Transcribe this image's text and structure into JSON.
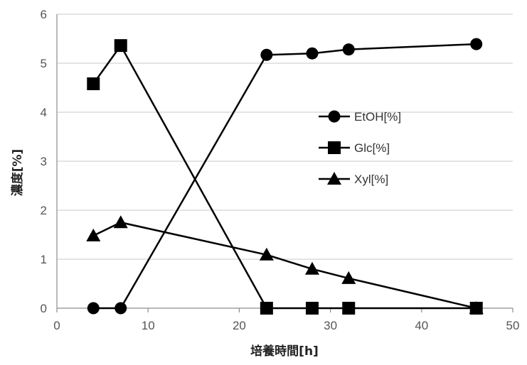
{
  "chart_data": {
    "type": "line",
    "xlabel": "培養時間[h]",
    "ylabel": "濃度[%]",
    "xlim": [
      0,
      50
    ],
    "ylim": [
      0,
      6
    ],
    "x_ticks": [
      "0",
      "10",
      "20",
      "30",
      "40",
      "50"
    ],
    "y_ticks": [
      "0",
      "1",
      "2",
      "3",
      "4",
      "5",
      "6"
    ],
    "grid": "horizontal",
    "legend_position": "center-right",
    "series": [
      {
        "name": "EtOH[%]",
        "marker": "circle",
        "color": "#000000",
        "x": [
          4,
          7,
          23,
          28,
          32,
          46
        ],
        "y": [
          0,
          0,
          5.17,
          5.2,
          5.28,
          5.39
        ]
      },
      {
        "name": "Glc[%]",
        "marker": "square",
        "color": "#000000",
        "x": [
          4,
          7,
          23,
          28,
          32,
          46
        ],
        "y": [
          4.58,
          5.36,
          0,
          0,
          0,
          0
        ]
      },
      {
        "name": "Xyl[%]",
        "marker": "triangle",
        "color": "#000000",
        "x": [
          4,
          7,
          23,
          28,
          32,
          46
        ],
        "y": [
          1.48,
          1.75,
          1.09,
          0.8,
          0.61,
          0
        ]
      }
    ]
  }
}
